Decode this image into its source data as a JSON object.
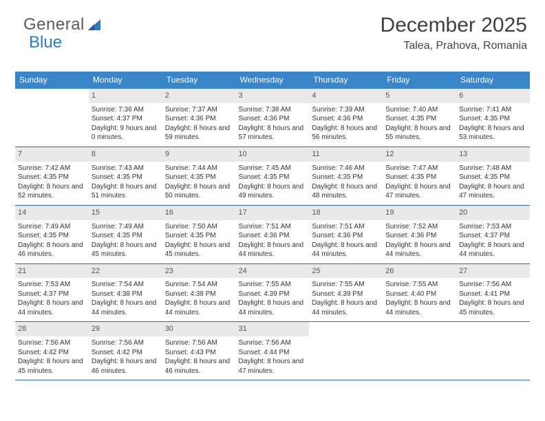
{
  "brand": {
    "part1": "General",
    "part2": "Blue"
  },
  "title": {
    "month": "December 2025",
    "location": "Talea, Prahova, Romania"
  },
  "dayHeaders": [
    "Sunday",
    "Monday",
    "Tuesday",
    "Wednesday",
    "Thursday",
    "Friday",
    "Saturday"
  ],
  "colors": {
    "header_bg": "#3a85c8",
    "header_fg": "#ffffff",
    "daynum_bg": "#e9e9e9",
    "row_border": "#2e6aa5",
    "brand_accent": "#2e7ac0"
  },
  "weeks": [
    [
      {
        "n": "",
        "sr": "",
        "ss": "",
        "dl": ""
      },
      {
        "n": "1",
        "sr": "Sunrise: 7:36 AM",
        "ss": "Sunset: 4:37 PM",
        "dl": "Daylight: 9 hours and 0 minutes."
      },
      {
        "n": "2",
        "sr": "Sunrise: 7:37 AM",
        "ss": "Sunset: 4:36 PM",
        "dl": "Daylight: 8 hours and 59 minutes."
      },
      {
        "n": "3",
        "sr": "Sunrise: 7:38 AM",
        "ss": "Sunset: 4:36 PM",
        "dl": "Daylight: 8 hours and 57 minutes."
      },
      {
        "n": "4",
        "sr": "Sunrise: 7:39 AM",
        "ss": "Sunset: 4:36 PM",
        "dl": "Daylight: 8 hours and 56 minutes."
      },
      {
        "n": "5",
        "sr": "Sunrise: 7:40 AM",
        "ss": "Sunset: 4:35 PM",
        "dl": "Daylight: 8 hours and 55 minutes."
      },
      {
        "n": "6",
        "sr": "Sunrise: 7:41 AM",
        "ss": "Sunset: 4:35 PM",
        "dl": "Daylight: 8 hours and 53 minutes."
      }
    ],
    [
      {
        "n": "7",
        "sr": "Sunrise: 7:42 AM",
        "ss": "Sunset: 4:35 PM",
        "dl": "Daylight: 8 hours and 52 minutes."
      },
      {
        "n": "8",
        "sr": "Sunrise: 7:43 AM",
        "ss": "Sunset: 4:35 PM",
        "dl": "Daylight: 8 hours and 51 minutes."
      },
      {
        "n": "9",
        "sr": "Sunrise: 7:44 AM",
        "ss": "Sunset: 4:35 PM",
        "dl": "Daylight: 8 hours and 50 minutes."
      },
      {
        "n": "10",
        "sr": "Sunrise: 7:45 AM",
        "ss": "Sunset: 4:35 PM",
        "dl": "Daylight: 8 hours and 49 minutes."
      },
      {
        "n": "11",
        "sr": "Sunrise: 7:46 AM",
        "ss": "Sunset: 4:35 PM",
        "dl": "Daylight: 8 hours and 48 minutes."
      },
      {
        "n": "12",
        "sr": "Sunrise: 7:47 AM",
        "ss": "Sunset: 4:35 PM",
        "dl": "Daylight: 8 hours and 47 minutes."
      },
      {
        "n": "13",
        "sr": "Sunrise: 7:48 AM",
        "ss": "Sunset: 4:35 PM",
        "dl": "Daylight: 8 hours and 47 minutes."
      }
    ],
    [
      {
        "n": "14",
        "sr": "Sunrise: 7:49 AM",
        "ss": "Sunset: 4:35 PM",
        "dl": "Daylight: 8 hours and 46 minutes."
      },
      {
        "n": "15",
        "sr": "Sunrise: 7:49 AM",
        "ss": "Sunset: 4:35 PM",
        "dl": "Daylight: 8 hours and 45 minutes."
      },
      {
        "n": "16",
        "sr": "Sunrise: 7:50 AM",
        "ss": "Sunset: 4:35 PM",
        "dl": "Daylight: 8 hours and 45 minutes."
      },
      {
        "n": "17",
        "sr": "Sunrise: 7:51 AM",
        "ss": "Sunset: 4:36 PM",
        "dl": "Daylight: 8 hours and 44 minutes."
      },
      {
        "n": "18",
        "sr": "Sunrise: 7:51 AM",
        "ss": "Sunset: 4:36 PM",
        "dl": "Daylight: 8 hours and 44 minutes."
      },
      {
        "n": "19",
        "sr": "Sunrise: 7:52 AM",
        "ss": "Sunset: 4:36 PM",
        "dl": "Daylight: 8 hours and 44 minutes."
      },
      {
        "n": "20",
        "sr": "Sunrise: 7:53 AM",
        "ss": "Sunset: 4:37 PM",
        "dl": "Daylight: 8 hours and 44 minutes."
      }
    ],
    [
      {
        "n": "21",
        "sr": "Sunrise: 7:53 AM",
        "ss": "Sunset: 4:37 PM",
        "dl": "Daylight: 8 hours and 44 minutes."
      },
      {
        "n": "22",
        "sr": "Sunrise: 7:54 AM",
        "ss": "Sunset: 4:38 PM",
        "dl": "Daylight: 8 hours and 44 minutes."
      },
      {
        "n": "23",
        "sr": "Sunrise: 7:54 AM",
        "ss": "Sunset: 4:38 PM",
        "dl": "Daylight: 8 hours and 44 minutes."
      },
      {
        "n": "24",
        "sr": "Sunrise: 7:55 AM",
        "ss": "Sunset: 4:39 PM",
        "dl": "Daylight: 8 hours and 44 minutes."
      },
      {
        "n": "25",
        "sr": "Sunrise: 7:55 AM",
        "ss": "Sunset: 4:39 PM",
        "dl": "Daylight: 8 hours and 44 minutes."
      },
      {
        "n": "26",
        "sr": "Sunrise: 7:55 AM",
        "ss": "Sunset: 4:40 PM",
        "dl": "Daylight: 8 hours and 44 minutes."
      },
      {
        "n": "27",
        "sr": "Sunrise: 7:56 AM",
        "ss": "Sunset: 4:41 PM",
        "dl": "Daylight: 8 hours and 45 minutes."
      }
    ],
    [
      {
        "n": "28",
        "sr": "Sunrise: 7:56 AM",
        "ss": "Sunset: 4:42 PM",
        "dl": "Daylight: 8 hours and 45 minutes."
      },
      {
        "n": "29",
        "sr": "Sunrise: 7:56 AM",
        "ss": "Sunset: 4:42 PM",
        "dl": "Daylight: 8 hours and 46 minutes."
      },
      {
        "n": "30",
        "sr": "Sunrise: 7:56 AM",
        "ss": "Sunset: 4:43 PM",
        "dl": "Daylight: 8 hours and 46 minutes."
      },
      {
        "n": "31",
        "sr": "Sunrise: 7:56 AM",
        "ss": "Sunset: 4:44 PM",
        "dl": "Daylight: 8 hours and 47 minutes."
      },
      {
        "n": "",
        "sr": "",
        "ss": "",
        "dl": ""
      },
      {
        "n": "",
        "sr": "",
        "ss": "",
        "dl": ""
      },
      {
        "n": "",
        "sr": "",
        "ss": "",
        "dl": ""
      }
    ]
  ]
}
